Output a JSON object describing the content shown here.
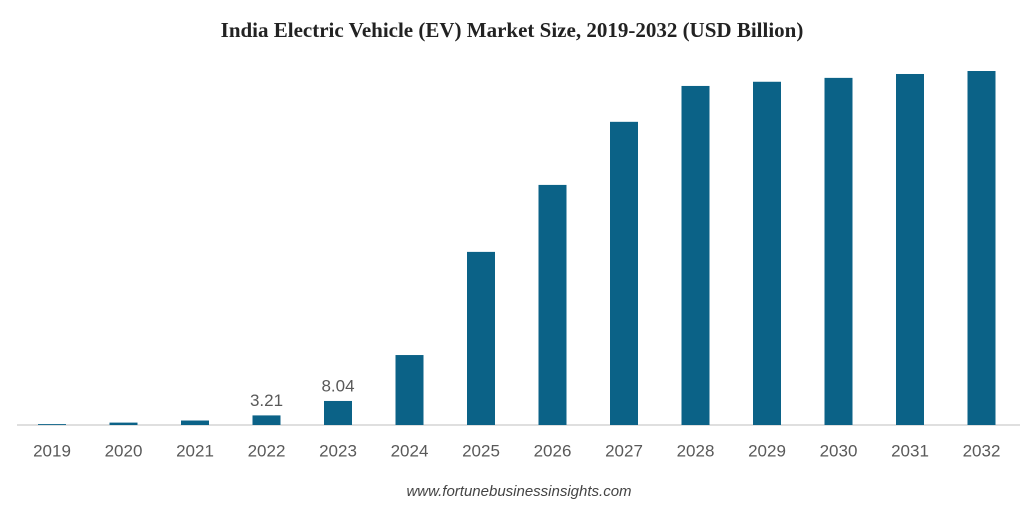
{
  "chart_data": {
    "type": "bar",
    "title": "India Electric Vehicle (EV) Market Size, 2019-2032 (USD Billion)",
    "categories": [
      "2019",
      "2020",
      "2021",
      "2022",
      "2023",
      "2024",
      "2025",
      "2026",
      "2027",
      "2028",
      "2029",
      "2030",
      "2031",
      "2032"
    ],
    "values": [
      0.3,
      0.8,
      1.5,
      3.21,
      8.04,
      23.4,
      57.9,
      80.3,
      101.4,
      113.4,
      114.8,
      116.1,
      117.4,
      118.4
    ],
    "value_labels": [
      null,
      null,
      null,
      "3.21",
      "8.04",
      null,
      null,
      null,
      null,
      null,
      null,
      null,
      null,
      null
    ],
    "color": "#0b6287",
    "source": "www.fortunebusinessinsights.com"
  }
}
